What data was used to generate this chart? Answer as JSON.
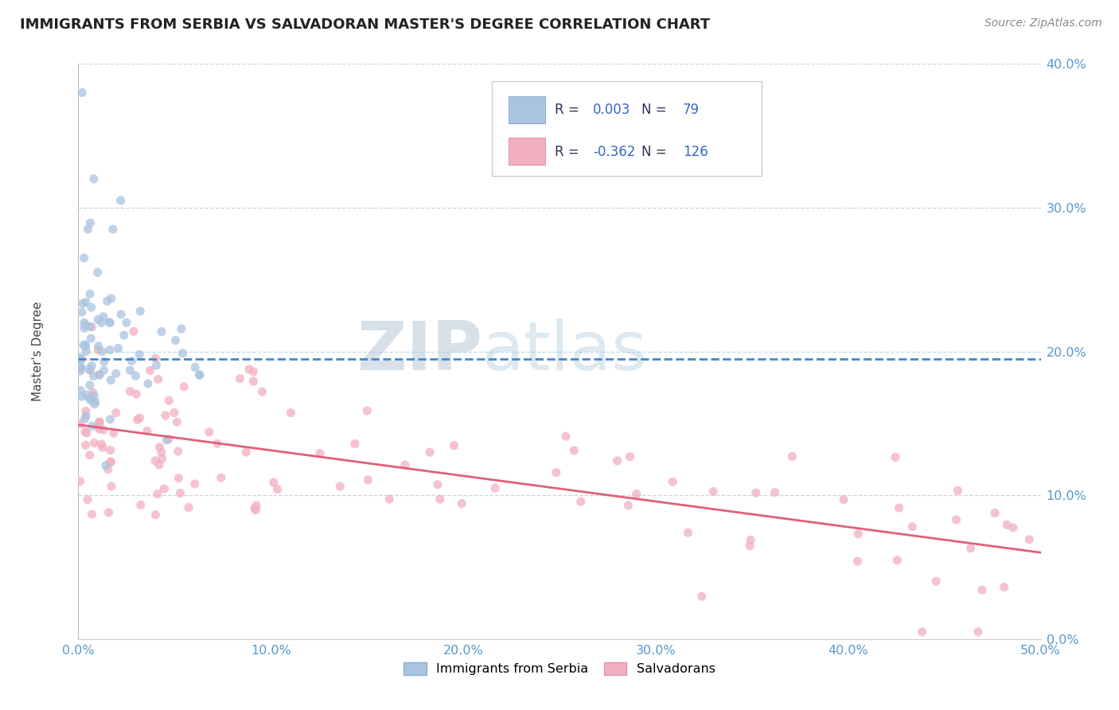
{
  "title": "IMMIGRANTS FROM SERBIA VS SALVADORAN MASTER'S DEGREE CORRELATION CHART",
  "source_text": "Source: ZipAtlas.com",
  "ylabel": "Master's Degree",
  "x_min": 0.0,
  "x_max": 0.5,
  "y_min": 0.0,
  "y_max": 0.4,
  "x_tick_vals": [
    0.0,
    0.1,
    0.2,
    0.3,
    0.4,
    0.5
  ],
  "x_tick_labels": [
    "0.0%",
    "10.0%",
    "20.0%",
    "30.0%",
    "40.0%",
    "50.0%"
  ],
  "y_tick_vals": [
    0.0,
    0.1,
    0.2,
    0.3,
    0.4
  ],
  "y_tick_labels": [
    "0.0%",
    "10.0%",
    "20.0%",
    "30.0%",
    "40.0%"
  ],
  "serbia_R": 0.003,
  "serbia_N": 79,
  "salvadoran_R": -0.362,
  "salvadoran_N": 126,
  "color_serbia": "#aac4e0",
  "color_salvadoran": "#f2afc0",
  "line_color_serbia": "#4488cc",
  "line_color_salvadoran": "#e0607a",
  "legend_border_color": "#cccccc",
  "watermark_ZIP": "ZIP",
  "watermark_atlas": "atlas",
  "watermark_color_zip": "#c0cfe0",
  "watermark_color_atlas": "#b8d0e0",
  "tick_color": "#5599cc",
  "background_color": "#ffffff",
  "grid_color": "#bbccdd",
  "title_color": "#222222",
  "source_color": "#888888",
  "legend_text_color": "#333355",
  "legend_value_color": "#3366cc"
}
